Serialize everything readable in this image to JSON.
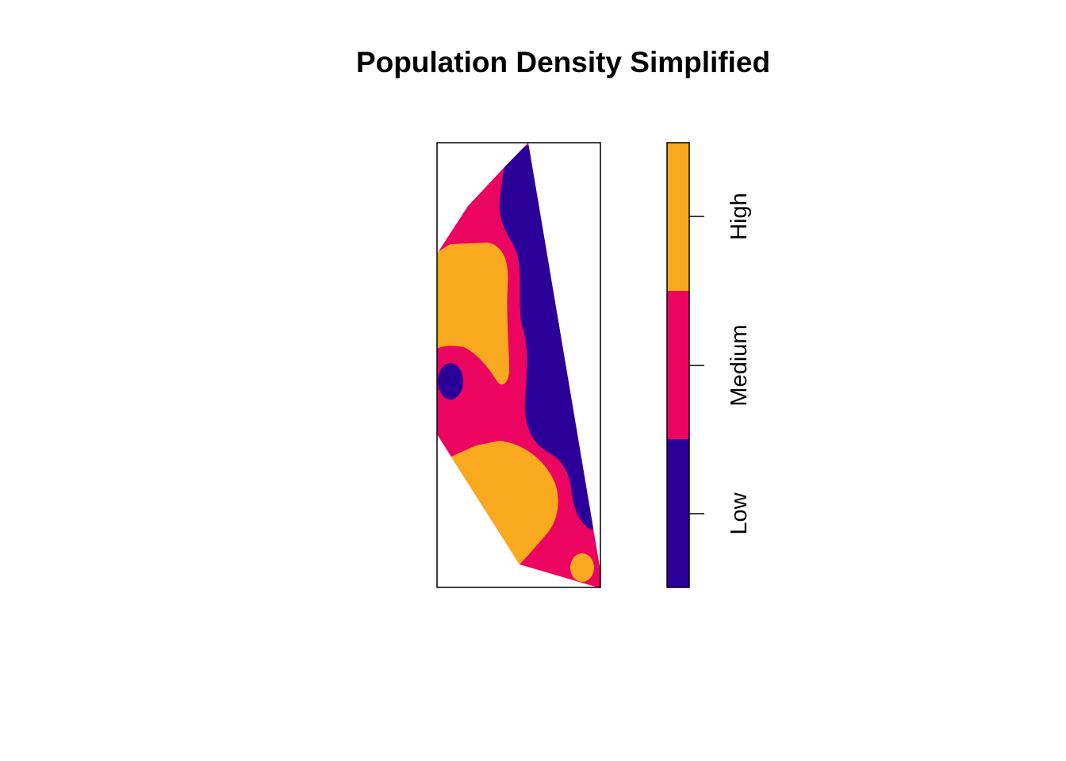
{
  "title": "Population Density Simplified",
  "legend": {
    "classes": [
      {
        "label": "High",
        "color": "#F9A91E"
      },
      {
        "label": "Medium",
        "color": "#EC0461"
      },
      {
        "label": "Low",
        "color": "#2B0099"
      }
    ]
  },
  "colors": {
    "low": "#2B0099",
    "medium": "#EC0461",
    "high": "#F9A91E",
    "frame": "#000000"
  }
}
